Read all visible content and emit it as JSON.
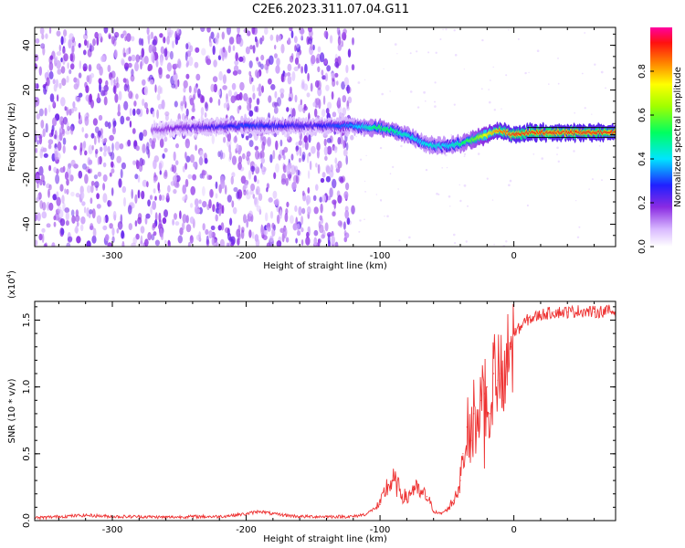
{
  "title": "C2E6.2023.311.07.04.G11",
  "chart_data": [
    {
      "type": "heatmap",
      "name": "spectrogram",
      "xlabel": "Height of straight line (km)",
      "ylabel": "Frequency (Hz)",
      "xlim": [
        -358,
        76
      ],
      "ylim": [
        -50,
        48
      ],
      "x_ticks": [
        -300,
        -200,
        -100,
        0
      ],
      "y_ticks": [
        -40,
        -20,
        0,
        20,
        40
      ],
      "x_tick_labels": [
        "-300",
        "-200",
        "-100",
        "0"
      ],
      "y_tick_labels": [
        "-40",
        "-20",
        "0",
        "20",
        "40"
      ],
      "grid": false,
      "colormap": "rainbow (white-violet-blue-cyan-green-yellow-orange-red-magenta)",
      "colorbar": {
        "label": "Normalized spectral amplitude",
        "range": [
          0,
          1
        ],
        "ticks": [
          0.0,
          0.2,
          0.4,
          0.6,
          0.8
        ],
        "tick_labels": [
          "0.0",
          "0.2",
          "0.4",
          "0.6",
          "0.8"
        ]
      },
      "ridge": {
        "x": [
          -270,
          -250,
          -200,
          -150,
          -120,
          -110,
          -100,
          -90,
          -80,
          -70,
          -60,
          -50,
          -40,
          -30,
          -20,
          -10,
          0,
          10,
          20,
          40,
          76
        ],
        "frequency": [
          2,
          3,
          4,
          4,
          4,
          3.5,
          3,
          2,
          0,
          -3,
          -5,
          -5,
          -4,
          -2,
          0,
          2,
          0,
          1,
          1,
          1,
          1
        ],
        "amplitude": [
          0.15,
          0.2,
          0.3,
          0.25,
          0.35,
          0.45,
          0.55,
          0.5,
          0.45,
          0.4,
          0.45,
          0.4,
          0.5,
          0.6,
          0.75,
          0.85,
          0.9,
          0.9,
          0.9,
          0.9,
          0.9
        ]
      },
      "noise_region_x": [
        -358,
        -120
      ]
    },
    {
      "type": "line",
      "name": "snr",
      "xlabel": "Height of straight line (km)",
      "ylabel": "SNR (10 * v/v)",
      "y_multiplier_label": "(x10",
      "y_multiplier_exp": "4",
      "y_multiplier_close": ")",
      "xlim": [
        -358,
        76
      ],
      "ylim": [
        0,
        16400
      ],
      "x_ticks": [
        -300,
        -200,
        -100,
        0
      ],
      "y_ticks": [
        0,
        5000,
        10000,
        15000
      ],
      "x_tick_labels": [
        "-300",
        "-200",
        "-100",
        "0"
      ],
      "y_tick_labels": [
        "0.0",
        "0.5",
        "1.0",
        "1.5"
      ],
      "grid": false,
      "color": "#ee3333",
      "series": [
        {
          "x": [
            -358,
            -340,
            -320,
            -300,
            -280,
            -260,
            -240,
            -220,
            -200,
            -190,
            -180,
            -170,
            -160,
            -140,
            -120,
            -110,
            -100,
            -95,
            -90,
            -85,
            -80,
            -75,
            -70,
            -65,
            -60,
            -55,
            -50,
            -45,
            -40,
            -38,
            -35,
            -32,
            -30,
            -28,
            -25,
            -22,
            -20,
            -18,
            -15,
            -12,
            -10,
            -8,
            -5,
            -2,
            0,
            5,
            10,
            15,
            20,
            25,
            30,
            40,
            50,
            60,
            70,
            76
          ],
          "values": [
            200,
            300,
            400,
            300,
            300,
            250,
            300,
            300,
            500,
            700,
            500,
            400,
            300,
            300,
            300,
            500,
            1200,
            2500,
            3000,
            2200,
            1600,
            2500,
            2000,
            1800,
            700,
            500,
            800,
            1500,
            3000,
            5000,
            7000,
            6000,
            8000,
            6500,
            9000,
            9500,
            10000,
            8000,
            11000,
            10500,
            11000,
            9000,
            11500,
            13000,
            14000,
            14500,
            15000,
            15200,
            15400,
            15500,
            15600,
            15600,
            15700,
            15600,
            15700,
            15600
          ]
        }
      ]
    }
  ],
  "colors": {
    "ridge_core": "#ff2020",
    "ridge_edge": "#00e060",
    "noise": "#7a1ff0",
    "snr_line": "#ee3333"
  }
}
